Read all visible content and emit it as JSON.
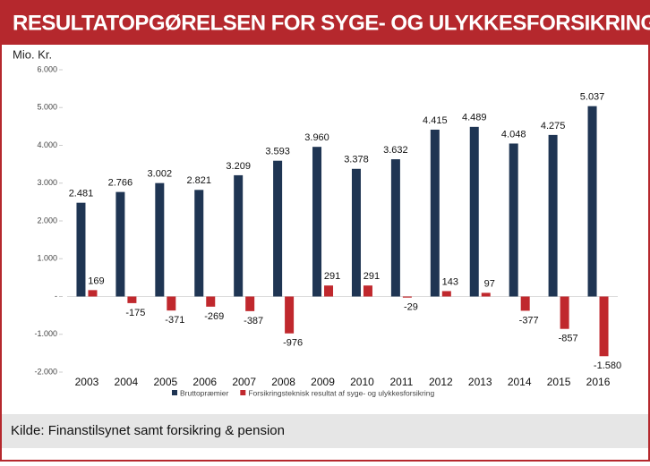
{
  "chart_data": {
    "type": "bar",
    "title": "RESULTATOPGØRELSEN FOR SYGE- OG ULYKKESFORSIKRING",
    "ylabel": "Mio. Kr.",
    "source": "Kilde: Finanstilsynet samt forsikring & pension",
    "categories": [
      "2003",
      "2004",
      "2005",
      "2006",
      "2007",
      "2008",
      "2009",
      "2010",
      "2011",
      "2012",
      "2013",
      "2014",
      "2015",
      "2016"
    ],
    "series": [
      {
        "name": "Bruttopræmier",
        "color": "#1f3553",
        "values": [
          2481,
          2766,
          3002,
          2821,
          3209,
          3593,
          3960,
          3378,
          3632,
          4415,
          4489,
          4048,
          4275,
          5037
        ],
        "value_labels": [
          "2.481",
          "2.766",
          "3.002",
          "2.821",
          "3.209",
          "3.593",
          "3.960",
          "3.378",
          "3.632",
          "4.415",
          "4.489",
          "4.048",
          "4.275",
          "5.037"
        ]
      },
      {
        "name": "Forsikringsteknisk resultat af syge- og ulykkesforsikring",
        "color": "#c0282d",
        "values": [
          169,
          -175,
          -371,
          -269,
          -387,
          -976,
          291,
          291,
          -29,
          143,
          97,
          -377,
          -857,
          -1580
        ],
        "value_labels": [
          "169",
          "-175",
          "-371",
          "-269",
          "-387",
          "-976",
          "291",
          "291",
          "-29",
          "143",
          "97",
          "-377",
          "-857",
          "-1.580"
        ]
      }
    ],
    "ylim": [
      -2000,
      6000
    ],
    "yticks": [
      {
        "value": -2000,
        "label": "-2.000"
      },
      {
        "value": -1000,
        "label": "-1.000"
      },
      {
        "value": 0,
        "label": "-"
      },
      {
        "value": 1000,
        "label": "1.000"
      },
      {
        "value": 2000,
        "label": "2.000"
      },
      {
        "value": 3000,
        "label": "3.000"
      },
      {
        "value": 4000,
        "label": "4.000"
      },
      {
        "value": 5000,
        "label": "5.000"
      },
      {
        "value": 6000,
        "label": "6.000"
      }
    ],
    "legend": "bottom"
  }
}
